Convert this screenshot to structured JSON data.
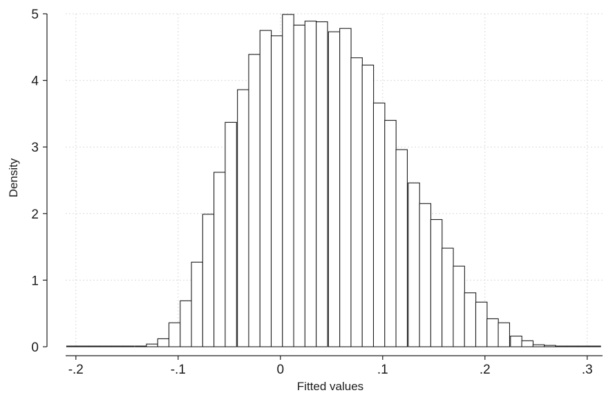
{
  "chart_data": {
    "type": "bar",
    "subtype": "histogram",
    "title": "",
    "xlabel": "Fitted values",
    "ylabel": "Density",
    "xlim": [
      -0.21,
      0.315
    ],
    "ylim": [
      0,
      5
    ],
    "x_ticks": [
      {
        "value": -0.2,
        "label": "-.2"
      },
      {
        "value": -0.1,
        "label": "-.1"
      },
      {
        "value": 0,
        "label": "0"
      },
      {
        "value": 0.1,
        "label": ".1"
      },
      {
        "value": 0.2,
        "label": ".2"
      },
      {
        "value": 0.3,
        "label": ".3"
      }
    ],
    "y_ticks": [
      {
        "value": 0,
        "label": "0"
      },
      {
        "value": 1,
        "label": "1"
      },
      {
        "value": 2,
        "label": "2"
      },
      {
        "value": 3,
        "label": "3"
      },
      {
        "value": 4,
        "label": "4"
      },
      {
        "value": 5,
        "label": "5"
      }
    ],
    "grid": true,
    "bin_width": 0.0111,
    "bins": [
      {
        "x0": -0.209,
        "density": 0.01
      },
      {
        "x0": -0.198,
        "density": 0.01
      },
      {
        "x0": -0.187,
        "density": 0.01
      },
      {
        "x0": -0.176,
        "density": 0.01
      },
      {
        "x0": -0.165,
        "density": 0.01
      },
      {
        "x0": -0.154,
        "density": 0.01
      },
      {
        "x0": -0.142,
        "density": 0.01
      },
      {
        "x0": -0.131,
        "density": 0.04
      },
      {
        "x0": -0.12,
        "density": 0.12
      },
      {
        "x0": -0.109,
        "density": 0.36
      },
      {
        "x0": -0.098,
        "density": 0.69
      },
      {
        "x0": -0.087,
        "density": 1.27
      },
      {
        "x0": -0.076,
        "density": 1.99
      },
      {
        "x0": -0.065,
        "density": 2.62
      },
      {
        "x0": -0.054,
        "density": 3.37
      },
      {
        "x0": -0.042,
        "density": 3.86
      },
      {
        "x0": -0.031,
        "density": 4.39
      },
      {
        "x0": -0.02,
        "density": 4.75
      },
      {
        "x0": -0.009,
        "density": 4.67
      },
      {
        "x0": 0.002,
        "density": 4.99
      },
      {
        "x0": 0.013,
        "density": 4.83
      },
      {
        "x0": 0.024,
        "density": 4.89
      },
      {
        "x0": 0.035,
        "density": 4.88
      },
      {
        "x0": 0.047,
        "density": 4.73
      },
      {
        "x0": 0.058,
        "density": 4.78
      },
      {
        "x0": 0.069,
        "density": 4.34
      },
      {
        "x0": 0.08,
        "density": 4.23
      },
      {
        "x0": 0.091,
        "density": 3.66
      },
      {
        "x0": 0.102,
        "density": 3.4
      },
      {
        "x0": 0.113,
        "density": 2.96
      },
      {
        "x0": 0.125,
        "density": 2.46
      },
      {
        "x0": 0.136,
        "density": 2.15
      },
      {
        "x0": 0.147,
        "density": 1.91
      },
      {
        "x0": 0.158,
        "density": 1.48
      },
      {
        "x0": 0.169,
        "density": 1.21
      },
      {
        "x0": 0.18,
        "density": 0.81
      },
      {
        "x0": 0.191,
        "density": 0.67
      },
      {
        "x0": 0.202,
        "density": 0.42
      },
      {
        "x0": 0.213,
        "density": 0.36
      },
      {
        "x0": 0.225,
        "density": 0.16
      },
      {
        "x0": 0.236,
        "density": 0.09
      },
      {
        "x0": 0.247,
        "density": 0.03
      },
      {
        "x0": 0.258,
        "density": 0.02
      },
      {
        "x0": 0.269,
        "density": 0.01
      },
      {
        "x0": 0.28,
        "density": 0.01
      },
      {
        "x0": 0.291,
        "density": 0.01
      },
      {
        "x0": 0.302,
        "density": 0.01
      }
    ],
    "colors": {
      "bar_fill": "#ffffff",
      "bar_stroke": "#1a1a1a",
      "grid": "#d9d9d9",
      "axis": "#1a1a1a"
    }
  }
}
